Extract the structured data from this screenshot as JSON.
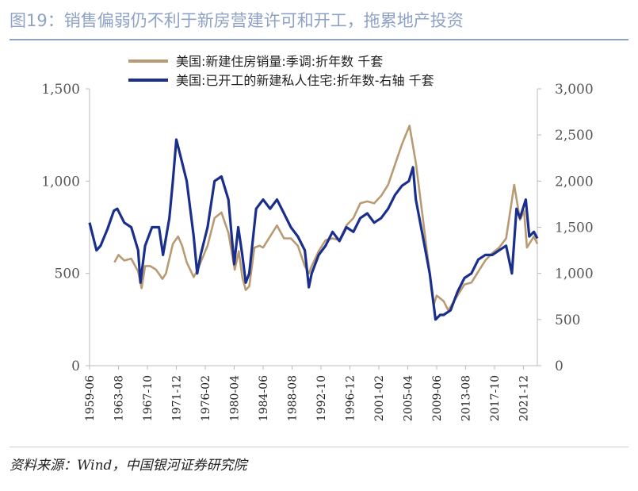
{
  "header": {
    "title": "图19：销售偏弱仍不利于新房营建许可和开工，拖累地产投资"
  },
  "footer": {
    "source": "资料来源：Wind，中国银河证券研究院"
  },
  "colors": {
    "title": "#8ea2c6",
    "series_sales": "#b99b73",
    "series_starts": "#1a2f8c",
    "axis": "#bbbbbb"
  },
  "chart_data": {
    "type": "line",
    "title": "",
    "xlabel": "",
    "ylabel": "",
    "xlim": [
      "1959-06",
      "2023-12"
    ],
    "ylim": [
      0,
      1500
    ],
    "y2lim": [
      0,
      3000
    ],
    "y_ticks": [
      "0",
      "500",
      "1,000",
      "1,500"
    ],
    "y2_ticks": [
      "0",
      "500",
      "1,000",
      "1,500",
      "2,000",
      "2,500",
      "3,000"
    ],
    "x_ticks": [
      "1959-06",
      "1963-08",
      "1967-10",
      "1971-12",
      "1976-02",
      "1980-04",
      "1984-06",
      "1988-08",
      "1992-10",
      "1996-12",
      "2001-02",
      "2005-04",
      "2009-06",
      "2013-08",
      "2017-10",
      "2021-12"
    ],
    "legend_position": "top-center",
    "series": [
      {
        "name": "美国:新建住房销量:季调:折年数 千套",
        "axis": "left",
        "x": [
          "1963-01",
          "1963-08",
          "1964-06",
          "1965-06",
          "1966-06",
          "1966-12",
          "1967-06",
          "1968-03",
          "1969-01",
          "1969-12",
          "1970-06",
          "1971-06",
          "1972-03",
          "1972-10",
          "1973-06",
          "1974-06",
          "1975-01",
          "1975-06",
          "1976-06",
          "1977-06",
          "1978-06",
          "1979-06",
          "1980-05",
          "1980-12",
          "1981-06",
          "1981-12",
          "1982-06",
          "1983-03",
          "1983-12",
          "1984-06",
          "1985-06",
          "1986-06",
          "1987-06",
          "1988-06",
          "1989-06",
          "1990-06",
          "1991-01",
          "1991-06",
          "1992-06",
          "1993-06",
          "1994-06",
          "1995-06",
          "1996-06",
          "1997-06",
          "1998-06",
          "1999-06",
          "2000-06",
          "2001-06",
          "2002-06",
          "2003-06",
          "2004-06",
          "2005-07",
          "2006-06",
          "2007-06",
          "2008-06",
          "2009-01",
          "2009-06",
          "2010-06",
          "2011-02",
          "2012-06",
          "2013-06",
          "2014-06",
          "2015-06",
          "2016-06",
          "2017-06",
          "2018-06",
          "2019-06",
          "2020-08",
          "2021-06",
          "2022-01",
          "2022-06",
          "2023-06",
          "2023-12"
        ],
        "values": [
          560,
          600,
          570,
          580,
          510,
          420,
          540,
          540,
          520,
          470,
          500,
          660,
          700,
          650,
          560,
          480,
          520,
          560,
          650,
          800,
          830,
          720,
          520,
          620,
          480,
          410,
          430,
          640,
          650,
          640,
          700,
          760,
          690,
          690,
          650,
          540,
          500,
          540,
          620,
          680,
          690,
          680,
          760,
          800,
          880,
          890,
          880,
          920,
          980,
          1090,
          1200,
          1300,
          1100,
          800,
          500,
          330,
          380,
          350,
          300,
          380,
          440,
          450,
          510,
          570,
          610,
          640,
          690,
          980,
          790,
          840,
          640,
          700,
          660
        ]
      },
      {
        "name": "美国:已开工的新建私人住宅:折年数-右轴 千套",
        "axis": "right",
        "x": [
          "1959-06",
          "1960-06",
          "1961-01",
          "1962-01",
          "1962-12",
          "1963-06",
          "1964-06",
          "1965-06",
          "1966-06",
          "1966-10",
          "1967-06",
          "1968-06",
          "1969-06",
          "1970-01",
          "1970-12",
          "1971-06",
          "1971-12",
          "1972-06",
          "1973-06",
          "1974-06",
          "1974-12",
          "1975-06",
          "1976-06",
          "1977-06",
          "1978-06",
          "1979-06",
          "1980-04",
          "1980-11",
          "1981-06",
          "1981-12",
          "1982-06",
          "1983-06",
          "1984-06",
          "1985-06",
          "1986-06",
          "1987-06",
          "1988-06",
          "1989-06",
          "1990-06",
          "1991-01",
          "1991-06",
          "1992-06",
          "1993-06",
          "1994-06",
          "1995-06",
          "1996-06",
          "1997-06",
          "1998-06",
          "1999-06",
          "2000-06",
          "2001-06",
          "2002-06",
          "2003-06",
          "2004-06",
          "2005-06",
          "2006-01",
          "2006-06",
          "2007-06",
          "2008-06",
          "2009-04",
          "2009-12",
          "2010-06",
          "2011-06",
          "2012-06",
          "2013-06",
          "2014-06",
          "2015-06",
          "2016-06",
          "2017-06",
          "2018-06",
          "2019-06",
          "2020-04",
          "2020-12",
          "2021-06",
          "2022-04",
          "2022-10",
          "2023-06",
          "2023-12"
        ],
        "values": [
          1550,
          1250,
          1300,
          1480,
          1680,
          1700,
          1550,
          1500,
          1250,
          900,
          1300,
          1500,
          1500,
          1200,
          1600,
          2000,
          2450,
          2300,
          2000,
          1400,
          1000,
          1200,
          1500,
          2000,
          2050,
          1800,
          1100,
          1500,
          1200,
          900,
          1000,
          1700,
          1800,
          1700,
          1800,
          1650,
          1500,
          1400,
          1250,
          850,
          1000,
          1200,
          1300,
          1450,
          1350,
          1500,
          1450,
          1600,
          1650,
          1550,
          1600,
          1700,
          1850,
          1950,
          2000,
          2150,
          1800,
          1400,
          1000,
          500,
          550,
          550,
          600,
          800,
          950,
          1000,
          1150,
          1200,
          1200,
          1250,
          1300,
          1000,
          1700,
          1600,
          1800,
          1400,
          1450,
          1380
        ]
      }
    ]
  }
}
